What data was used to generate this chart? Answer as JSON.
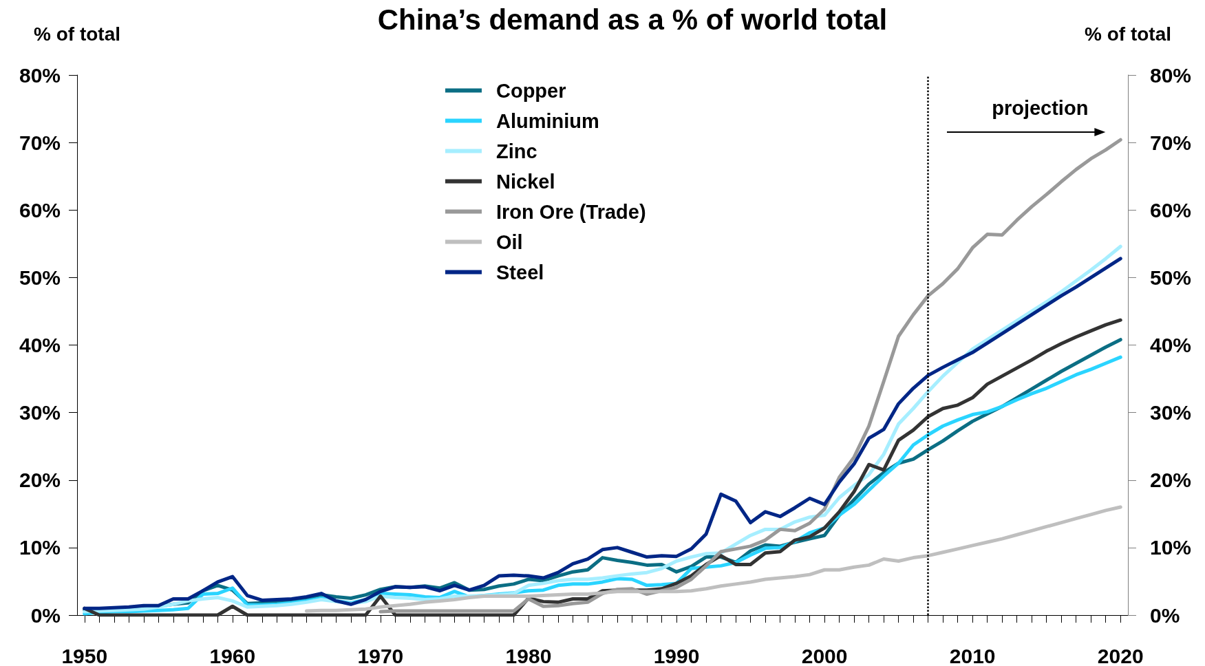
{
  "chart_data": {
    "type": "line",
    "title": "China’s demand as a % of world total",
    "ylabel": "% of total",
    "y2label": "% of total",
    "x": [
      1950,
      1951,
      1952,
      1953,
      1954,
      1955,
      1956,
      1957,
      1958,
      1959,
      1960,
      1961,
      1962,
      1963,
      1964,
      1965,
      1966,
      1967,
      1968,
      1969,
      1970,
      1971,
      1972,
      1973,
      1974,
      1975,
      1976,
      1977,
      1978,
      1979,
      1980,
      1981,
      1982,
      1983,
      1984,
      1985,
      1986,
      1987,
      1988,
      1989,
      1990,
      1991,
      1992,
      1993,
      1994,
      1995,
      1996,
      1997,
      1998,
      1999,
      2000,
      2001,
      2002,
      2003,
      2004,
      2005,
      2006,
      2007,
      2008,
      2009,
      2010,
      2011,
      2012,
      2013,
      2014,
      2015,
      2016,
      2017,
      2018,
      2019,
      2020
    ],
    "series": [
      {
        "name": "Copper",
        "color": "#0b6e84",
        "values": [
          0.8,
          0.8,
          0.9,
          1.0,
          1.1,
          1.3,
          1.6,
          1.8,
          3.6,
          4.4,
          3.7,
          1.7,
          1.8,
          1.9,
          2.1,
          2.5,
          3.0,
          2.7,
          2.5,
          3.0,
          3.8,
          4.2,
          4.1,
          4.3,
          4.0,
          4.8,
          3.7,
          3.8,
          4.3,
          4.6,
          5.3,
          5.1,
          5.8,
          6.4,
          6.7,
          8.5,
          8.1,
          7.8,
          7.4,
          7.5,
          6.4,
          7.2,
          8.6,
          8.6,
          7.8,
          9.5,
          10.4,
          10.2,
          10.8,
          11.3,
          11.8,
          14.8,
          17.1,
          19.4,
          21.1,
          22.5,
          23.1,
          24.5,
          25.8,
          27.3,
          28.7,
          29.8,
          30.9,
          32.2,
          33.5,
          34.8,
          36.1,
          37.3,
          38.5,
          39.7,
          40.8
        ]
      },
      {
        "name": "Aluminium",
        "color": "#2ad4ff",
        "values": [
          0.2,
          0.4,
          0.5,
          0.5,
          0.6,
          0.7,
          0.8,
          1.0,
          3.1,
          3.2,
          4.0,
          1.5,
          1.5,
          1.6,
          1.8,
          2.1,
          2.5,
          2.1,
          1.8,
          2.3,
          3.2,
          3.1,
          3.0,
          2.7,
          2.6,
          3.5,
          2.7,
          2.9,
          3.1,
          3.3,
          3.6,
          3.7,
          4.4,
          4.6,
          4.6,
          4.9,
          5.4,
          5.3,
          4.4,
          4.5,
          4.7,
          6.9,
          7.1,
          7.3,
          7.8,
          8.9,
          9.9,
          10.0,
          10.9,
          12.2,
          12.9,
          14.8,
          16.4,
          18.5,
          20.6,
          22.5,
          25.2,
          26.7,
          28.0,
          28.9,
          29.7,
          30.1,
          30.9,
          31.9,
          32.8,
          33.6,
          34.6,
          35.6,
          36.4,
          37.3,
          38.2
        ]
      },
      {
        "name": "Zinc",
        "color": "#a6eeff",
        "values": [
          0.5,
          0.6,
          0.7,
          0.8,
          0.9,
          1.2,
          1.6,
          2.1,
          2.4,
          2.6,
          2.1,
          1.2,
          1.3,
          1.4,
          1.6,
          1.9,
          2.3,
          2.0,
          1.7,
          2.0,
          2.8,
          2.6,
          2.5,
          2.3,
          2.4,
          2.8,
          2.8,
          2.9,
          3.0,
          3.2,
          4.4,
          4.7,
          5.1,
          5.3,
          5.3,
          5.5,
          5.8,
          6.1,
          6.3,
          6.9,
          8.0,
          8.6,
          9.1,
          9.2,
          10.5,
          11.8,
          12.7,
          12.7,
          13.8,
          14.5,
          14.8,
          17.4,
          19.2,
          20.8,
          23.8,
          28.3,
          30.6,
          33.1,
          35.4,
          37.4,
          39.4,
          40.8,
          42.2,
          43.6,
          45.0,
          46.4,
          47.9,
          49.5,
          51.1,
          52.8,
          54.6
        ]
      },
      {
        "name": "Nickel",
        "color": "#333333",
        "values": [
          1.0,
          0,
          0,
          0,
          0,
          0,
          0,
          0,
          0,
          0,
          1.3,
          0,
          0,
          0,
          0,
          0,
          0,
          0,
          0,
          0,
          2.8,
          0,
          0,
          0,
          0,
          0,
          0,
          0,
          0,
          0,
          2.5,
          2.0,
          1.9,
          2.4,
          2.4,
          3.6,
          3.7,
          3.7,
          3.7,
          3.9,
          4.7,
          5.8,
          7.5,
          8.8,
          7.5,
          7.5,
          9.2,
          9.4,
          11.1,
          11.6,
          12.9,
          15.3,
          18.3,
          22.3,
          21.5,
          25.9,
          27.4,
          29.4,
          30.6,
          31.1,
          32.2,
          34.2,
          35.4,
          36.6,
          37.8,
          39.1,
          40.2,
          41.2,
          42.1,
          43.0,
          43.7
        ]
      },
      {
        "name": "Iron Ore (Trade)",
        "color": "#999999",
        "values": [
          null,
          null,
          null,
          null,
          null,
          null,
          null,
          null,
          null,
          null,
          null,
          null,
          null,
          null,
          null,
          null,
          null,
          null,
          null,
          null,
          0.5,
          0.6,
          0.6,
          0.6,
          0.6,
          0.6,
          0.6,
          0.6,
          0.6,
          0.6,
          2.4,
          1.3,
          1.4,
          1.7,
          1.9,
          3.2,
          3.8,
          3.9,
          3.1,
          3.6,
          4.1,
          5.3,
          7.3,
          9.4,
          9.8,
          10.2,
          11.1,
          12.7,
          12.5,
          13.6,
          15.7,
          20.4,
          23.4,
          28.0,
          34.6,
          41.3,
          44.5,
          47.3,
          49.1,
          51.3,
          54.4,
          56.4,
          56.3,
          58.5,
          60.5,
          62.3,
          64.2,
          66.0,
          67.6,
          68.9,
          70.4
        ]
      },
      {
        "name": "Oil",
        "color": "#bfbfbf",
        "values": [
          null,
          null,
          null,
          null,
          null,
          null,
          null,
          null,
          null,
          null,
          null,
          null,
          null,
          null,
          null,
          0.6,
          0.7,
          0.7,
          0.8,
          0.9,
          1.2,
          1.4,
          1.6,
          1.9,
          2.1,
          2.3,
          2.6,
          2.8,
          2.8,
          2.8,
          2.8,
          2.9,
          3.0,
          3.1,
          3.1,
          3.3,
          3.5,
          3.5,
          3.5,
          3.5,
          3.5,
          3.6,
          3.9,
          4.3,
          4.6,
          4.9,
          5.3,
          5.5,
          5.7,
          6.0,
          6.7,
          6.7,
          7.1,
          7.4,
          8.3,
          8.0,
          8.5,
          8.8,
          9.3,
          9.8,
          10.3,
          10.8,
          11.3,
          11.9,
          12.5,
          13.1,
          13.7,
          14.3,
          14.9,
          15.5,
          16.0
        ]
      },
      {
        "name": "Steel",
        "color": "#002686",
        "values": [
          1.0,
          1.0,
          1.1,
          1.2,
          1.4,
          1.4,
          2.4,
          2.4,
          3.6,
          4.9,
          5.7,
          2.9,
          2.2,
          2.3,
          2.4,
          2.7,
          3.2,
          2.1,
          1.6,
          2.3,
          3.5,
          4.2,
          4.1,
          4.2,
          3.6,
          4.4,
          3.7,
          4.4,
          5.8,
          5.9,
          5.8,
          5.5,
          6.3,
          7.6,
          8.3,
          9.7,
          10.0,
          9.3,
          8.6,
          8.8,
          8.7,
          9.8,
          12.0,
          17.9,
          16.9,
          13.7,
          15.3,
          14.6,
          15.9,
          17.3,
          16.4,
          19.7,
          22.4,
          26.2,
          27.5,
          31.3,
          33.6,
          35.5,
          36.7,
          37.8,
          38.9,
          40.3,
          41.7,
          43.1,
          44.5,
          45.9,
          47.3,
          48.6,
          50.0,
          51.4,
          52.8
        ]
      }
    ],
    "xlim": [
      1949.5,
      2020.5
    ],
    "xticks": [
      1950,
      {
        "value": 1951,
        "label": null
      },
      {
        "value": 1952,
        "label": null
      },
      {
        "value": 1953,
        "label": null
      },
      {
        "value": 1954,
        "label": null
      },
      {
        "value": 1955,
        "label": null
      },
      {
        "value": 1956,
        "label": null
      },
      {
        "value": 1957,
        "label": null
      },
      {
        "value": 1958,
        "label": null
      },
      {
        "value": 1959,
        "label": null
      },
      1960,
      {
        "value": 1961,
        "label": null
      },
      {
        "value": 1962,
        "label": null
      },
      {
        "value": 1963,
        "label": null
      },
      {
        "value": 1964,
        "label": null
      },
      {
        "value": 1965,
        "label": null
      },
      {
        "value": 1966,
        "label": null
      },
      {
        "value": 1967,
        "label": null
      },
      {
        "value": 1968,
        "label": null
      },
      {
        "value": 1969,
        "label": null
      },
      1970,
      {
        "value": 1971,
        "label": null
      },
      {
        "value": 1972,
        "label": null
      },
      {
        "value": 1973,
        "label": null
      },
      {
        "value": 1974,
        "label": null
      },
      {
        "value": 1975,
        "label": null
      },
      {
        "value": 1976,
        "label": null
      },
      {
        "value": 1977,
        "label": null
      },
      {
        "value": 1978,
        "label": null
      },
      {
        "value": 1979,
        "label": null
      },
      1980,
      {
        "value": 1981,
        "label": null
      },
      {
        "value": 1982,
        "label": null
      },
      {
        "value": 1983,
        "label": null
      },
      {
        "value": 1984,
        "label": null
      },
      {
        "value": 1985,
        "label": null
      },
      {
        "value": 1986,
        "label": null
      },
      {
        "value": 1987,
        "label": null
      },
      {
        "value": 1988,
        "label": null
      },
      {
        "value": 1989,
        "label": null
      },
      1990,
      {
        "value": 1991,
        "label": null
      },
      {
        "value": 1992,
        "label": null
      },
      {
        "value": 1993,
        "label": null
      },
      {
        "value": 1994,
        "label": null
      },
      {
        "value": 1995,
        "label": null
      },
      {
        "value": 1996,
        "label": null
      },
      {
        "value": 1997,
        "label": null
      },
      {
        "value": 1998,
        "label": null
      },
      {
        "value": 1999,
        "label": null
      },
      2000,
      {
        "value": 2001,
        "label": null
      },
      {
        "value": 2002,
        "label": null
      },
      {
        "value": 2003,
        "label": null
      },
      {
        "value": 2004,
        "label": null
      },
      {
        "value": 2005,
        "label": null
      },
      {
        "value": 2006,
        "label": null
      },
      {
        "value": 2007,
        "label": null
      },
      {
        "value": 2008,
        "label": null
      },
      {
        "value": 2009,
        "label": null
      },
      2010,
      {
        "value": 2011,
        "label": null
      },
      {
        "value": 2012,
        "label": null
      },
      {
        "value": 2013,
        "label": null
      },
      {
        "value": 2014,
        "label": null
      },
      {
        "value": 2015,
        "label": null
      },
      {
        "value": 2016,
        "label": null
      },
      {
        "value": 2017,
        "label": null
      },
      {
        "value": 2018,
        "label": null
      },
      {
        "value": 2019,
        "label": null
      },
      2020
    ],
    "ylim": [
      0,
      80
    ],
    "yticks": [
      {
        "value": 0,
        "label": "0%"
      },
      {
        "value": 10,
        "label": "10%"
      },
      {
        "value": 20,
        "label": "20%"
      },
      {
        "value": 30,
        "label": "30%"
      },
      {
        "value": 40,
        "label": "40%"
      },
      {
        "value": 50,
        "label": "50%"
      },
      {
        "value": 60,
        "label": "60%"
      },
      {
        "value": 70,
        "label": "70%"
      },
      {
        "value": 80,
        "label": "80%"
      }
    ],
    "y2lim": [
      0,
      80
    ],
    "y2ticks": [
      {
        "value": 0,
        "label": "0%"
      },
      {
        "value": 10,
        "label": "10%"
      },
      {
        "value": 20,
        "label": "20%"
      },
      {
        "value": 30,
        "label": "30%"
      },
      {
        "value": 40,
        "label": "40%"
      },
      {
        "value": 50,
        "label": "50%"
      },
      {
        "value": 60,
        "label": "60%"
      },
      {
        "value": 70,
        "label": "70%"
      },
      {
        "value": 80,
        "label": "80%"
      }
    ],
    "ref_lines": [
      {
        "axis": "x",
        "value": 2007,
        "color": "#000000",
        "line_style": "dotted"
      }
    ],
    "annotations": [
      "projection"
    ],
    "legend": "top",
    "grid": false
  }
}
